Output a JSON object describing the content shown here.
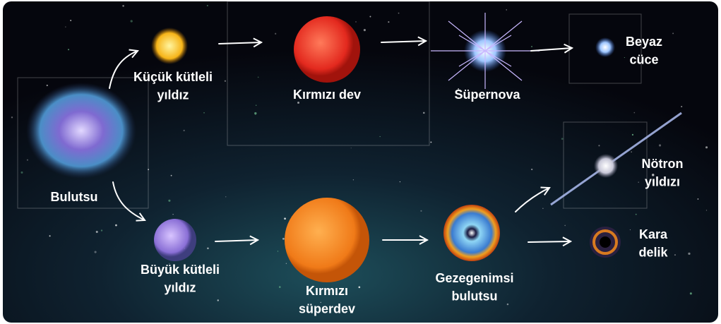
{
  "nodes": [
    {
      "label": [
        "Bulutsu"
      ]
    },
    {
      "label": [
        "Küçük kütleli",
        "yıldız"
      ]
    },
    {
      "label": [
        "Kırmızı dev"
      ]
    },
    {
      "label": [
        "Süpernova"
      ]
    },
    {
      "label": [
        "Beyaz",
        "cüce"
      ]
    },
    {
      "label": [
        "Büyük kütleli",
        "yıldız"
      ]
    },
    {
      "label": [
        "Kırmızı",
        "süperdev"
      ]
    },
    {
      "label": [
        "Gezegenimsi",
        "bulutsu"
      ]
    },
    {
      "label": [
        "Nötron",
        "yıldızı"
      ]
    },
    {
      "label": [
        "Kara",
        "delik"
      ]
    }
  ]
}
